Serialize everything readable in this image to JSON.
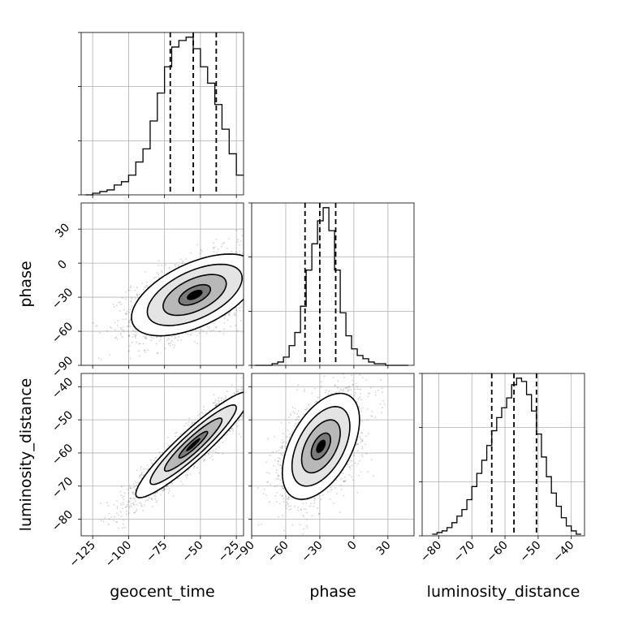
{
  "chart_data": {
    "type": "corner",
    "parameters": [
      "geocent_time",
      "phase",
      "luminosity_distance"
    ],
    "axis_labels": {
      "geocent_time": "geocent_time",
      "phase": "phase",
      "luminosity_distance": "luminosity_distance"
    },
    "ranges": {
      "geocent_time": [
        -133,
        -20
      ],
      "phase": [
        -90,
        53
      ],
      "luminosity_distance": [
        -85,
        -36
      ]
    },
    "ticks": {
      "geocent_time": [
        -125,
        -100,
        -75,
        -50,
        -25
      ],
      "phase": [
        -90,
        -60,
        -30,
        0,
        30
      ],
      "luminosity_distance": [
        -80,
        -70,
        -60,
        -50,
        -40
      ]
    },
    "tick_labels": {
      "geocent_time": [
        "−125",
        "−100",
        "−75",
        "−50",
        "−25"
      ],
      "phase": [
        "−90",
        "−60",
        "−30",
        "0",
        "30"
      ],
      "luminosity_distance": [
        "−80",
        "−70",
        "−60",
        "−50",
        "−40"
      ]
    },
    "phase_row_tick_labels": [
      "−90",
      "−60",
      "−30",
      "0",
      "30"
    ],
    "lumdist_row_tick_labels": [
      "−80",
      "−70",
      "−60",
      "−50",
      "−40"
    ],
    "quantiles": {
      "geocent_time": [
        -71,
        -55,
        -39
      ],
      "phase": [
        -43,
        -30,
        -16
      ],
      "luminosity_distance": [
        -64,
        -57.3,
        -50.5
      ]
    },
    "histograms": {
      "geocent_time": {
        "bin_edges": [
          -130,
          -125,
          -120,
          -115,
          -110,
          -105,
          -100,
          -95,
          -90,
          -85,
          -80,
          -75,
          -70,
          -65,
          -60,
          -55,
          -50,
          -45,
          -40,
          -35,
          -30,
          -25,
          -20
        ],
        "counts": [
          0,
          1,
          2,
          3,
          6,
          8,
          12,
          20,
          28,
          45,
          62,
          78,
          90,
          94,
          96,
          89,
          78,
          68,
          55,
          40,
          25,
          12
        ]
      },
      "phase": {
        "bin_edges": [
          -87,
          -82,
          -77,
          -72,
          -67,
          -62,
          -57,
          -52,
          -47,
          -42,
          -37,
          -32,
          -27,
          -22,
          -17,
          -12,
          -7,
          -2,
          3,
          8,
          13,
          18,
          23,
          28,
          33,
          38,
          43,
          48
        ],
        "counts": [
          0,
          0,
          0,
          1,
          2,
          5,
          12,
          20,
          36,
          58,
          74,
          88,
          96,
          82,
          58,
          32,
          18,
          10,
          6,
          4,
          2,
          1,
          1,
          0,
          0,
          0,
          0
        ]
      },
      "luminosity_distance": {
        "bin_edges": [
          -82,
          -80.5,
          -79,
          -77.5,
          -76,
          -74.5,
          -73,
          -71.5,
          -70,
          -68.5,
          -67,
          -65.5,
          -64,
          -62.5,
          -61,
          -59.5,
          -58,
          -56.5,
          -55,
          -53.5,
          -52,
          -50.5,
          -49,
          -47.5,
          -46,
          -44.5,
          -43,
          -41.5,
          -40,
          -38.5,
          -37
        ],
        "counts": [
          1,
          2,
          3,
          5,
          8,
          12,
          16,
          22,
          30,
          38,
          46,
          55,
          64,
          72,
          78,
          84,
          92,
          96,
          94,
          86,
          76,
          62,
          48,
          36,
          26,
          18,
          11,
          6,
          3,
          1
        ]
      }
    },
    "pairs": [
      {
        "x": "geocent_time",
        "y": "phase",
        "mean": [
          -54,
          -28
        ],
        "std": [
          22,
          18
        ],
        "correlation": 0.55,
        "n_points": 2600
      },
      {
        "x": "geocent_time",
        "y": "luminosity_distance",
        "mean": [
          -55,
          -57.5
        ],
        "std": [
          20,
          8
        ],
        "correlation": 0.93,
        "n_points": 2600
      },
      {
        "x": "phase",
        "y": "luminosity_distance",
        "mean": [
          -29,
          -58
        ],
        "std": [
          17,
          8
        ],
        "correlation": 0.5,
        "n_points": 2600
      }
    ],
    "contour_levels_sigma": [
      0.5,
      1.0,
      1.5,
      2.0
    ],
    "grid": true
  }
}
